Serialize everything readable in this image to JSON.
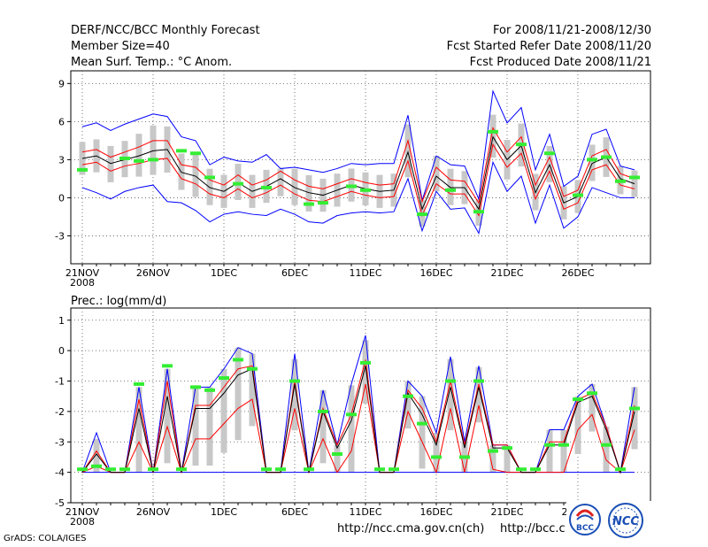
{
  "header": {
    "left": [
      "DERF/NCC/BCC Monthly Forecast",
      "Member Size=40",
      "Mean Surf. Temp.: °C Anom."
    ],
    "right": [
      "For 2008/11/21-2008/12/30",
      "Fcst Started Refer Date 2008/11/20",
      "Fcst Produced Date 2008/11/21"
    ]
  },
  "precip_title": "Prec.: log(mm/d)",
  "footer": {
    "grads": "GrADS: COLA/IGES",
    "url1": "http://ncc.cma.gov.cn(ch)",
    "url2": "http://bcc.c",
    "logo1_text": "BCC",
    "logo2_text": "NCC"
  },
  "colors": {
    "mean": "#000000",
    "spread": "#ff0000",
    "envelope": "#0000ff",
    "box": "#c8c8c8",
    "obs": "#33ee33"
  },
  "chart_data": [
    {
      "type": "line",
      "title": "Mean Surf. Temp.: °C Anom.",
      "x_labels": [
        "21NOV",
        "26NOV",
        "1DEC",
        "6DEC",
        "11DEC",
        "16DEC",
        "21DEC",
        "26DEC"
      ],
      "x_label_days": [
        1,
        6,
        11,
        16,
        21,
        26,
        31,
        36
      ],
      "year_label": "2008",
      "yticks": [
        -3,
        0,
        3,
        6,
        9
      ],
      "ylim": [
        -5.2,
        10
      ],
      "days": [
        1,
        2,
        3,
        4,
        5,
        6,
        7,
        8,
        9,
        10,
        11,
        12,
        13,
        14,
        15,
        16,
        17,
        18,
        19,
        20,
        21,
        22,
        23,
        24,
        25,
        26,
        27,
        28,
        29,
        30,
        31,
        32,
        33,
        34,
        35,
        36,
        37,
        38,
        39,
        40
      ],
      "series": [
        {
          "name": "ensemble mean",
          "values": [
            3.1,
            3.3,
            2.7,
            3.0,
            3.3,
            3.7,
            3.8,
            2.0,
            1.7,
            0.8,
            0.5,
            1.2,
            0.5,
            0.9,
            1.5,
            0.8,
            0.4,
            0.2,
            0.6,
            1.0,
            0.7,
            0.5,
            0.6,
            3.6,
            -0.9,
            1.7,
            0.8,
            0.8,
            -0.9,
            4.8,
            3.0,
            4.1,
            0.4,
            2.6,
            -0.4,
            0.1,
            2.7,
            3.2,
            1.5,
            1.1
          ]
        },
        {
          "name": "mean + std",
          "values": [
            3.6,
            3.8,
            3.2,
            3.6,
            4.0,
            4.5,
            4.5,
            2.6,
            2.4,
            1.4,
            1.0,
            1.8,
            1.0,
            1.4,
            2.1,
            1.4,
            0.9,
            0.7,
            1.1,
            1.5,
            1.2,
            1.0,
            1.1,
            4.5,
            -0.3,
            2.4,
            1.4,
            1.3,
            -0.4,
            5.5,
            3.6,
            4.8,
            1.0,
            3.2,
            0.1,
            0.6,
            3.3,
            3.8,
            1.9,
            1.5
          ]
        },
        {
          "name": "mean - std",
          "values": [
            2.6,
            2.8,
            2.1,
            2.5,
            2.7,
            3.0,
            3.1,
            1.5,
            1.1,
            0.3,
            0.0,
            0.7,
            0.0,
            0.4,
            1.0,
            0.3,
            -0.2,
            -0.3,
            0.1,
            0.5,
            0.2,
            0.0,
            0.1,
            2.9,
            -1.4,
            1.1,
            0.3,
            0.3,
            -1.4,
            4.2,
            2.4,
            3.5,
            -0.1,
            2.1,
            -0.9,
            -0.4,
            2.2,
            2.6,
            1.0,
            0.7
          ]
        },
        {
          "name": "ensemble max",
          "values": [
            5.6,
            5.9,
            5.3,
            5.8,
            6.2,
            6.6,
            6.4,
            4.8,
            4.5,
            2.6,
            3.2,
            2.9,
            2.8,
            3.4,
            2.3,
            2.4,
            2.2,
            2.0,
            2.3,
            2.7,
            2.6,
            2.7,
            2.7,
            6.5,
            -0.2,
            3.3,
            2.6,
            2.5,
            -0.1,
            8.4,
            5.9,
            7.1,
            2.2,
            5.0,
            0.9,
            1.7,
            5.0,
            5.4,
            2.5,
            2.2
          ]
        },
        {
          "name": "ensemble min",
          "values": [
            0.8,
            0.4,
            -0.1,
            0.5,
            0.8,
            1.0,
            -0.3,
            -0.4,
            -1.0,
            -1.9,
            -1.3,
            -1.1,
            -1.3,
            -1.4,
            -0.9,
            -1.3,
            -1.9,
            -2.0,
            -1.4,
            -1.2,
            -1.1,
            -1.2,
            -1.1,
            1.5,
            -2.6,
            0.5,
            -0.9,
            -0.8,
            -2.8,
            2.8,
            0.5,
            1.7,
            -2.0,
            1.0,
            -2.4,
            -1.5,
            0.8,
            0.4,
            0.0,
            0.0
          ]
        },
        {
          "name": "observed",
          "values": [
            2.2,
            null,
            null,
            3.1,
            2.9,
            3.0,
            null,
            3.7,
            3.5,
            1.6,
            null,
            1.1,
            null,
            0.8,
            null,
            null,
            -0.5,
            -0.4,
            null,
            0.9,
            0.6,
            null,
            null,
            null,
            -1.3,
            null,
            0.6,
            null,
            -1.1,
            5.2,
            null,
            4.2,
            null,
            3.5,
            null,
            0.2,
            3.0,
            3.2,
            1.3,
            1.6
          ]
        }
      ]
    },
    {
      "type": "line",
      "title": "Prec.: log(mm/d)",
      "x_labels": [
        "21NOV",
        "26NOV",
        "1DEC",
        "6DEC",
        "11DEC",
        "16DEC",
        "21DEC",
        "26DEC"
      ],
      "x_label_days": [
        1,
        6,
        11,
        16,
        21,
        26,
        31,
        36
      ],
      "year_label": "2008",
      "yticks": [
        -5,
        -4,
        -3,
        -2,
        -1,
        0,
        1
      ],
      "ylim": [
        -5,
        1.4
      ],
      "days": [
        1,
        2,
        3,
        4,
        5,
        6,
        7,
        8,
        9,
        10,
        11,
        12,
        13,
        14,
        15,
        16,
        17,
        18,
        19,
        20,
        21,
        22,
        23,
        24,
        25,
        26,
        27,
        28,
        29,
        30,
        31,
        32,
        33,
        34,
        35,
        36,
        37,
        38,
        39,
        40
      ],
      "series": [
        {
          "name": "ensemble mean",
          "values": [
            -4,
            -3.4,
            -4,
            -4,
            -1.9,
            -4,
            -1.5,
            -4,
            -1.9,
            -1.9,
            -1.4,
            -0.8,
            -0.6,
            -4,
            -4,
            -1.1,
            -4,
            -2.0,
            -3.2,
            -2.3,
            -0.5,
            -4,
            -4,
            -1.4,
            -2.1,
            -3.1,
            -1.2,
            -3.2,
            -1.2,
            -3.2,
            -3.2,
            -4,
            -4,
            -3.1,
            -3.1,
            -1.7,
            -1.5,
            -2.6,
            -4,
            -2.0
          ]
        },
        {
          "name": "mean + std",
          "values": [
            -4,
            -3.3,
            -4,
            -4,
            -1.6,
            -4,
            -1.0,
            -4,
            -1.8,
            -1.8,
            -1.2,
            -0.6,
            -0.5,
            -4,
            -4,
            -1.0,
            -4,
            -1.9,
            -3.1,
            -2.1,
            -0.3,
            -4,
            -4,
            -1.3,
            -1.9,
            -3.0,
            -1.0,
            -3.1,
            -1.1,
            -3.1,
            -3.1,
            -4,
            -4,
            -3.0,
            -3.0,
            -1.6,
            -1.4,
            -2.5,
            -4,
            -1.8
          ]
        },
        {
          "name": "mean - std",
          "values": [
            -4,
            -3.8,
            -4,
            -4,
            -3.0,
            -4,
            -2.5,
            -4,
            -2.9,
            -2.9,
            -2.4,
            -1.9,
            -1.6,
            -4,
            -4,
            -1.9,
            -4,
            -2.9,
            -4,
            -3.3,
            -1.1,
            -4,
            -4,
            -2.0,
            -3.0,
            -4,
            -1.9,
            -4,
            -1.8,
            -3.9,
            -4,
            -4,
            -4,
            -4,
            -4,
            -2.6,
            -2.1,
            -3.6,
            -4,
            -2.6
          ]
        },
        {
          "name": "ensemble max",
          "values": [
            -4,
            -2.7,
            -4,
            -4,
            -1.2,
            -4,
            -0.6,
            -4,
            -1.2,
            -1.2,
            -0.6,
            0.1,
            -0.1,
            -4,
            -4,
            -0.1,
            -4,
            -1.3,
            -3.1,
            -1.1,
            0.5,
            -4,
            -4,
            -1.0,
            -1.5,
            -2.7,
            -0.2,
            -3.0,
            -0.5,
            -3.1,
            -3.1,
            -4,
            -4,
            -2.6,
            -2.6,
            -1.5,
            -1.1,
            -2.5,
            -4,
            -1.2
          ]
        },
        {
          "name": "ensemble min",
          "values": [
            -4,
            -4,
            -4,
            -4,
            -4,
            -4,
            -4,
            -4,
            -4,
            -4,
            -4,
            -4,
            -4,
            -4,
            -4,
            -4,
            -4,
            -4,
            -4,
            -4,
            -4,
            -4,
            -4,
            -4,
            -4,
            -4,
            -4,
            -4,
            -4,
            -4,
            -4,
            -4,
            -4,
            -4,
            -4,
            -4,
            -4,
            -4,
            -4,
            -4
          ]
        },
        {
          "name": "observed",
          "values": [
            -3.9,
            -3.8,
            -3.9,
            -3.9,
            -1.1,
            -3.9,
            -0.5,
            -3.9,
            -1.2,
            -1.3,
            -0.9,
            -0.3,
            -0.6,
            -3.9,
            -3.9,
            -1.0,
            -3.9,
            -2.0,
            -3.4,
            -2.1,
            -0.4,
            -3.9,
            -3.9,
            -1.5,
            -2.4,
            -3.5,
            -1.0,
            -3.5,
            -1.0,
            -3.3,
            -3.2,
            -3.9,
            -3.9,
            -3.1,
            -3.1,
            -1.6,
            -1.4,
            -3.1,
            -3.9,
            -1.9
          ]
        }
      ]
    }
  ]
}
